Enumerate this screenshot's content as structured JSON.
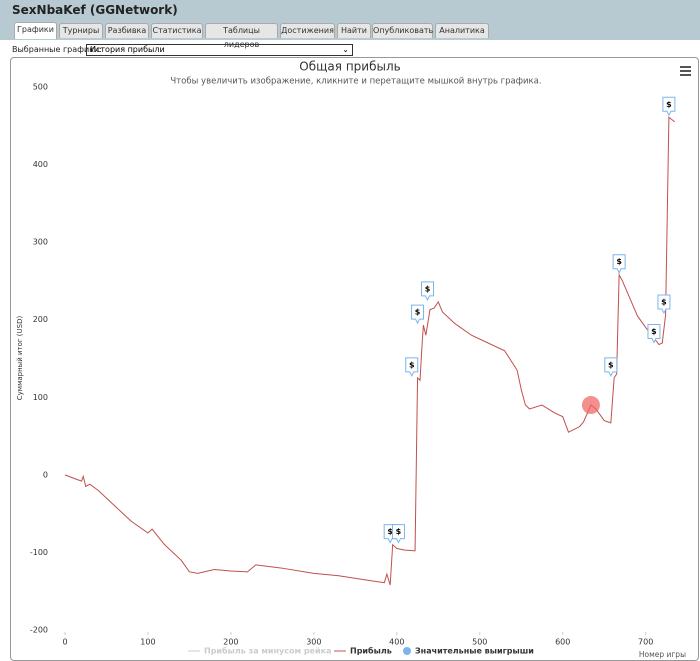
{
  "header": {
    "title": "SexNbaKef (GGNetwork)"
  },
  "tabs": [
    "Графики",
    "Турниры",
    "Разбивка",
    "Статистика",
    "Таблицы лидеров",
    "Достижения",
    "Найти",
    "Опубликовать",
    "Аналитика"
  ],
  "selector": {
    "label": "Выбранные графики:",
    "value": "История прибыли"
  },
  "chart_data": {
    "type": "line",
    "title": "Общая прибыль",
    "subtitle": "Чтобы увеличить изображение, кликните и перетащите мышкой внутрь графика.",
    "x_label": "Номер игры",
    "y_label": "Суммарный итог (USD)",
    "xlim": [
      0,
      745
    ],
    "ylim": [
      -200,
      500
    ],
    "xticks": [
      0,
      100,
      200,
      300,
      400,
      500,
      600,
      700
    ],
    "yticks": [
      -200,
      -100,
      0,
      100,
      200,
      300,
      400,
      500
    ],
    "grid": false,
    "x": [
      0,
      12,
      20,
      22,
      25,
      30,
      40,
      60,
      80,
      100,
      105,
      120,
      140,
      150,
      160,
      180,
      200,
      220,
      230,
      260,
      300,
      330,
      360,
      385,
      388,
      392,
      395,
      400,
      410,
      422,
      425,
      428,
      430,
      432,
      435,
      440,
      445,
      450,
      455,
      470,
      490,
      510,
      530,
      545,
      550,
      555,
      560,
      575,
      590,
      600,
      607,
      620,
      625,
      634,
      640,
      650,
      658,
      662,
      665,
      668,
      672,
      680,
      690,
      700,
      716,
      720,
      724,
      728,
      735
    ],
    "series": [
      {
        "name": "Прибыль",
        "color": "#c0504d",
        "values": [
          0,
          -5,
          -8,
          -2,
          -15,
          -12,
          -20,
          -40,
          -60,
          -75,
          -70,
          -90,
          -110,
          -125,
          -127,
          -122,
          -124,
          -125,
          -116,
          -120,
          -127,
          -130,
          -135,
          -139,
          -128,
          -142,
          -90,
          -95,
          -97,
          -98,
          125,
          122,
          160,
          193,
          180,
          213,
          215,
          223,
          210,
          195,
          180,
          170,
          160,
          135,
          110,
          90,
          85,
          90,
          80,
          75,
          55,
          62,
          68,
          90,
          85,
          70,
          67,
          125,
          130,
          258,
          250,
          230,
          205,
          190,
          168,
          170,
          206,
          461,
          455
        ]
      }
    ],
    "hidden_series": {
      "name": "Прибыль за минусом рейка",
      "color": "#cccccc"
    },
    "wins": {
      "name": "Значительные выигрыши",
      "color": "#7cb5ec",
      "marker": "$",
      "x": [
        392,
        402,
        418,
        425,
        437,
        658,
        668,
        710,
        722,
        728
      ],
      "y": [
        -90,
        -90,
        125,
        193,
        223,
        125,
        258,
        168,
        206,
        461
      ]
    },
    "highlight": {
      "x": 634,
      "y": 90,
      "color": "#f06060"
    }
  }
}
